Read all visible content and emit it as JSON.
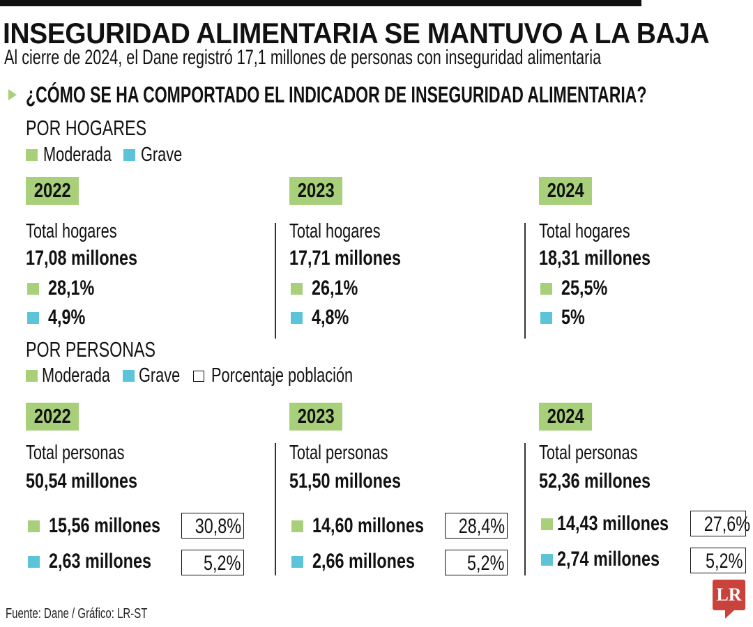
{
  "header": {
    "title": "INSEGURIDAD ALIMENTARIA SE MANTUVO A LA BAJA",
    "subtitle": "Al cierre de 2024, el Dane registró 17,1 millones de personas con inseguridad alimentaria",
    "question": "¿CÓMO SE HA COMPORTADO EL INDICADOR DE INSEGURIDAD ALIMENTARIA?"
  },
  "colors": {
    "moderada": "#a8cf7a",
    "grave": "#5bc4d8",
    "logo": "#c9423c"
  },
  "hogares": {
    "heading": "POR HOGARES",
    "legend": {
      "moderada": "Moderada",
      "grave": "Grave"
    },
    "years": [
      {
        "year": "2022",
        "label": "Total hogares",
        "total": "17,08 millones",
        "moderada": "28,1%",
        "grave": "4,9%"
      },
      {
        "year": "2023",
        "label": "Total hogares",
        "total": "17,71 millones",
        "moderada": "26,1%",
        "grave": "4,8%"
      },
      {
        "year": "2024",
        "label": "Total hogares",
        "total": "18,31 millones",
        "moderada": "25,5%",
        "grave": "5%"
      }
    ]
  },
  "personas": {
    "heading": "POR PERSONAS",
    "legend": {
      "moderada": "Moderada",
      "grave": "Grave",
      "porcentaje": "Porcentaje población"
    },
    "years": [
      {
        "year": "2022",
        "label": "Total personas",
        "total": "50,54 millones",
        "moderada": "15,56 millones",
        "moderada_pct": "30,8%",
        "grave": "2,63 millones",
        "grave_pct": "5,2%"
      },
      {
        "year": "2023",
        "label": "Total personas",
        "total": "51,50 millones",
        "moderada": "14,60 millones",
        "moderada_pct": "28,4%",
        "grave": "2,66 millones",
        "grave_pct": "5,2%"
      },
      {
        "year": "2024",
        "label": "Total personas",
        "total": "52,36 millones",
        "moderada": "14,43 millones",
        "moderada_pct": "27,6%",
        "grave": "2,74 millones",
        "grave_pct": "5,2%"
      }
    ]
  },
  "footer": {
    "source": "Fuente: Dane / Gráfico: LR-ST",
    "logo": "LR"
  }
}
